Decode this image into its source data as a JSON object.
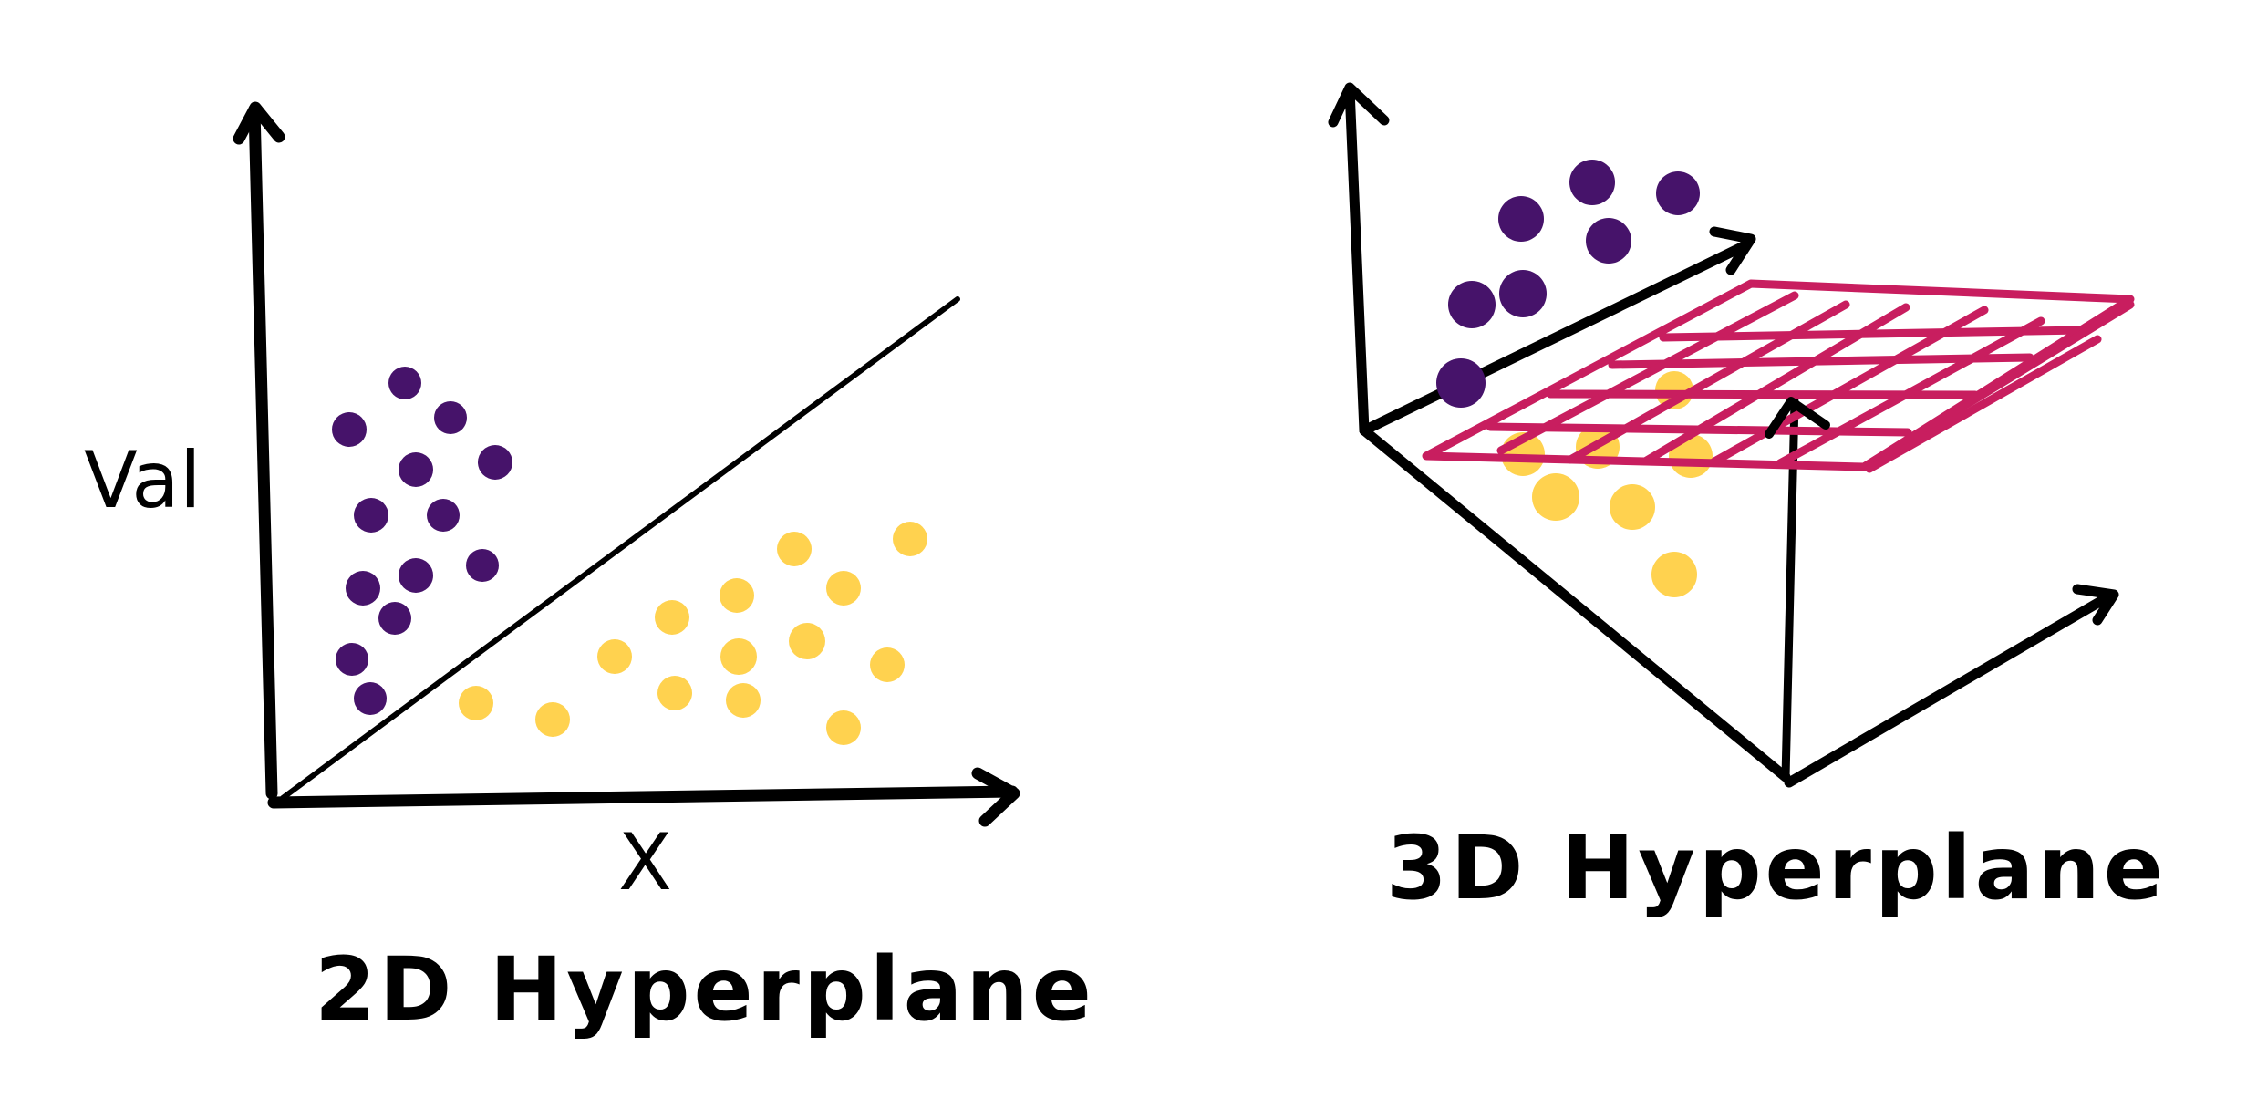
{
  "colors": {
    "ink": "#000000",
    "class_a": "#46136a",
    "class_b": "#ffd24f",
    "plane": "#c81e5f"
  },
  "left_panel": {
    "y_axis_label": "Val",
    "x_axis_label": "X",
    "title": "2D Hyperplane"
  },
  "right_panel": {
    "title": "3D Hyperplane"
  }
}
